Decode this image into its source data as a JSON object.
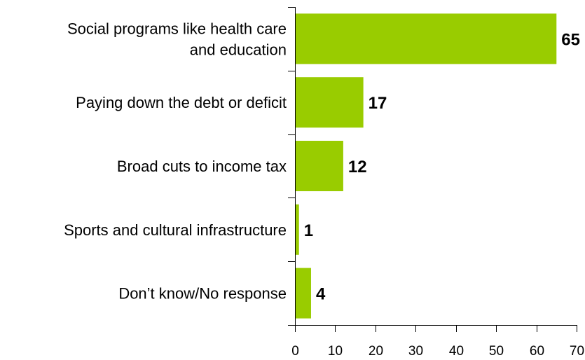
{
  "chart_data": {
    "type": "bar",
    "orientation": "horizontal",
    "categories": [
      [
        "Social programs like health care",
        "and education"
      ],
      [
        "Paying down the debt or deficit"
      ],
      [
        "Broad cuts to income tax"
      ],
      [
        "Sports and cultural infrastructure"
      ],
      [
        "Don’t know/No response"
      ]
    ],
    "values": [
      65,
      17,
      12,
      1,
      4
    ],
    "value_labels": [
      "65",
      "17",
      "12",
      "1",
      "4"
    ],
    "xlim": [
      0,
      70
    ],
    "xticks": [
      0,
      10,
      20,
      30,
      40,
      50,
      60,
      70
    ],
    "tick_labels": [
      "0",
      "10",
      "20",
      "30",
      "40",
      "50",
      "60",
      "70"
    ],
    "title": "",
    "xlabel": "",
    "ylabel": "",
    "grid": false,
    "legend": "none",
    "bar_color": "#99cc00"
  }
}
